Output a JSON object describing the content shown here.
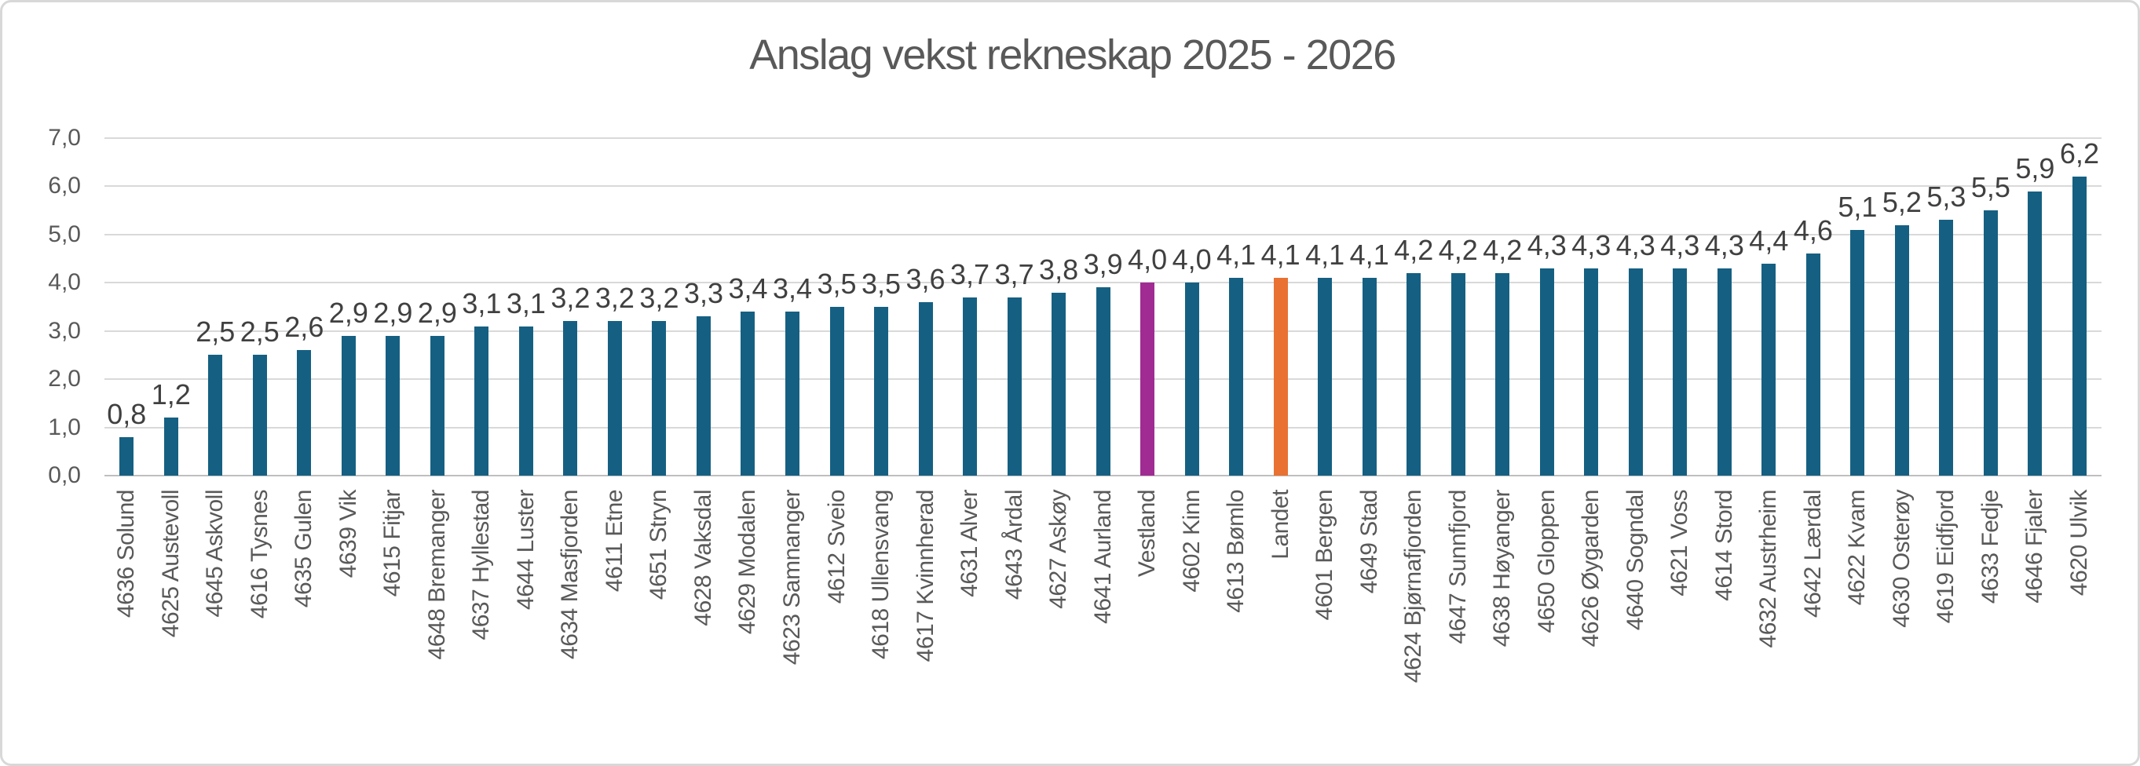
{
  "chart_data": {
    "type": "bar",
    "title": "Anslag vekst rekneskap 2025 - 2026",
    "categories": [
      "4636 Solund",
      "4625 Austevoll",
      "4645 Askvoll",
      "4616 Tysnes",
      "4635 Gulen",
      "4639 Vik",
      "4615 Fitjar",
      "4648 Bremanger",
      "4637 Hyllestad",
      "4644 Luster",
      "4634 Masfjorden",
      "4611 Etne",
      "4651 Stryn",
      "4628 Vaksdal",
      "4629 Modalen",
      "4623 Samnanger",
      "4612 Sveio",
      "4618 Ullensvang",
      "4617 Kvinnherad",
      "4631 Alver",
      "4643 Årdal",
      "4627 Askøy",
      "4641 Aurland",
      "Vestland",
      "4602 Kinn",
      "4613 Bømlo",
      "Landet",
      "4601 Bergen",
      "4649 Stad",
      "4624 Bjørnafjorden",
      "4647 Sunnfjord",
      "4638 Høyanger",
      "4650 Gloppen",
      "4626 Øygarden",
      "4640 Sogndal",
      "4621 Voss",
      "4614 Stord",
      "4632 Austrheim",
      "4642 Lærdal",
      "4622 Kvam",
      "4630 Osterøy",
      "4619 Eidfjord",
      "4633 Fedje",
      "4646 Fjaler",
      "4620 Ulvik"
    ],
    "values": [
      0.8,
      1.2,
      2.5,
      2.5,
      2.6,
      2.9,
      2.9,
      2.9,
      3.1,
      3.1,
      3.2,
      3.2,
      3.2,
      3.3,
      3.4,
      3.4,
      3.5,
      3.5,
      3.6,
      3.7,
      3.7,
      3.8,
      3.9,
      4.0,
      4.0,
      4.1,
      4.1,
      4.1,
      4.1,
      4.2,
      4.2,
      4.2,
      4.3,
      4.3,
      4.3,
      4.3,
      4.3,
      4.4,
      4.6,
      5.1,
      5.2,
      5.3,
      5.5,
      5.9,
      6.2
    ],
    "value_labels": [
      "0,8",
      "1,2",
      "2,5",
      "2,5",
      "2,6",
      "2,9",
      "2,9",
      "2,9",
      "3,1",
      "3,1",
      "3,2",
      "3,2",
      "3,2",
      "3,3",
      "3,4",
      "3,4",
      "3,5",
      "3,5",
      "3,6",
      "3,7",
      "3,7",
      "3,8",
      "3,9",
      "4,0",
      "4,0",
      "4,1",
      "4,1",
      "4,1",
      "4,1",
      "4,2",
      "4,2",
      "4,2",
      "4,3",
      "4,3",
      "4,3",
      "4,3",
      "4,3",
      "4,4",
      "4,6",
      "5,1",
      "5,2",
      "5,3",
      "5,5",
      "5,9",
      "6,2"
    ],
    "ylim": [
      0,
      7
    ],
    "y_tick_values": [
      0,
      1,
      2,
      3,
      4,
      5,
      6,
      7
    ],
    "y_tick_labels": [
      "0,0",
      "1,0",
      "2,0",
      "3,0",
      "4,0",
      "5,0",
      "6,0",
      "7,0"
    ],
    "grid": true,
    "legend": "none",
    "xlabel": "",
    "ylabel": "",
    "highlighted_bars": {
      "Vestland": "#A02B93",
      "Landet": "#E97132"
    },
    "colors": {
      "bar_default": "#156082",
      "vestland_highlight": "#A02B93",
      "landet_highlight": "#E97132",
      "title_text": "#595959",
      "axis_text": "#595959",
      "data_label_text": "#404040",
      "gridline": "#D9D9D9",
      "axis_line": "#BFBFBF"
    }
  }
}
